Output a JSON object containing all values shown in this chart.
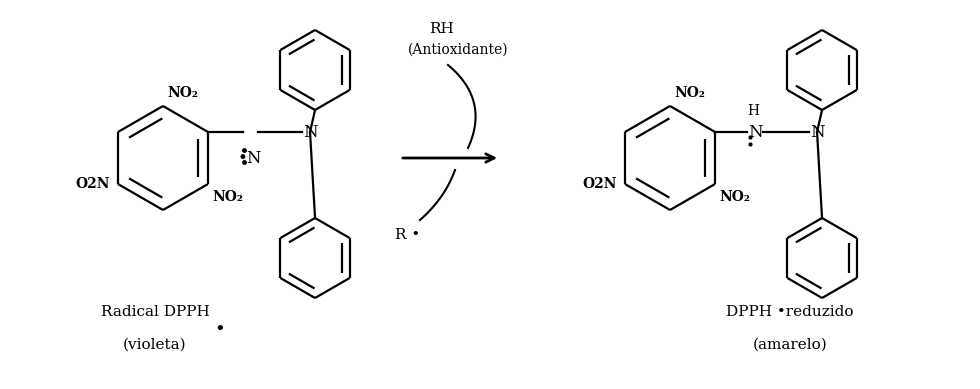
{
  "background_color": "#ffffff",
  "figsize": [
    9.8,
    3.89
  ],
  "dpi": 100,
  "label_radical": "Radical DPPH",
  "label_radical_dot": "•",
  "label_violeta": "(violeta)",
  "label_dpph_reduced": "DPPH •reduzido",
  "label_amarelo": "(amarelo)",
  "label_rh": "RH",
  "label_antioxidante": "(Antioxidante)",
  "label_r_dot": "R •",
  "text_color": "#000000",
  "line_color": "#000000",
  "lw": 1.6
}
